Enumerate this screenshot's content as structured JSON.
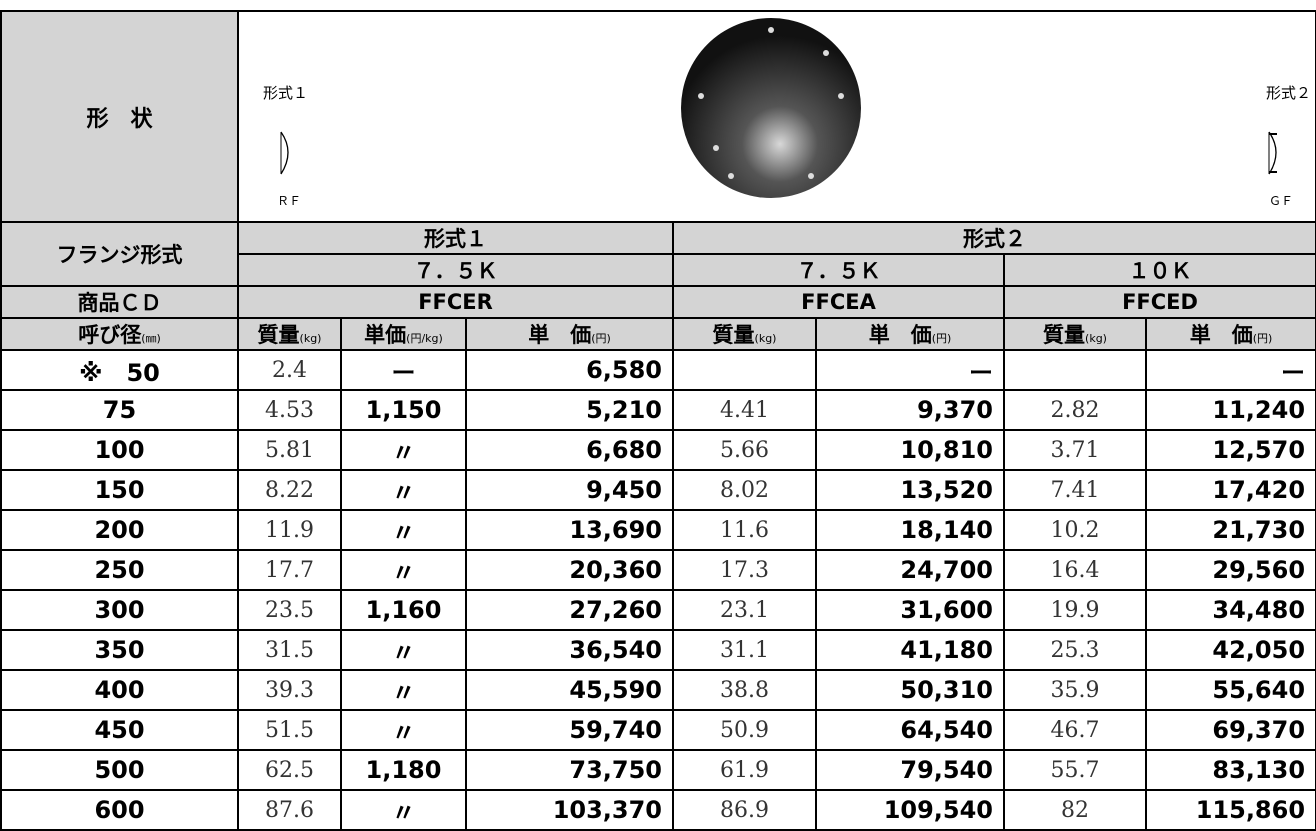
{
  "shape_row": {
    "label": "形　状",
    "left": {
      "name": "形式１",
      "code": "ＲＦ"
    },
    "right": {
      "name": "形式２",
      "code": "ＧＦ"
    }
  },
  "header": {
    "flange_label": "フランジ形式",
    "type1": "形式１",
    "type2": "形式２",
    "pressure1": "７．５Ｋ",
    "pressure2": "７．５Ｋ",
    "pressure3": "１０Ｋ",
    "product_label": "商品ＣＤ",
    "code1": "FFCER",
    "code2": "FFCEA",
    "code3": "FFCED",
    "columns": [
      {
        "label": "呼び径",
        "unit": "(㎜)"
      },
      {
        "label": "質量",
        "unit": "(kg)"
      },
      {
        "label": "単価",
        "unit": "(円/kg)"
      },
      {
        "label": "単　価",
        "unit": "(円)"
      },
      {
        "label": "質量",
        "unit": "(kg)"
      },
      {
        "label": "単　価",
        "unit": "(円)"
      },
      {
        "label": "質量",
        "unit": "(kg)"
      },
      {
        "label": "単　価",
        "unit": "(円)"
      }
    ]
  },
  "table": {
    "rows": [
      [
        "※　50",
        "2.4",
        "ー",
        "6,580",
        null,
        "ー",
        null,
        "ー"
      ],
      [
        "75",
        "4.53",
        "1,150",
        "5,210",
        "4.41",
        "9,370",
        "2.82",
        "11,240"
      ],
      [
        "100",
        "5.81",
        "〃",
        "6,680",
        "5.66",
        "10,810",
        "3.71",
        "12,570"
      ],
      [
        "150",
        "8.22",
        "〃",
        "9,450",
        "8.02",
        "13,520",
        "7.41",
        "17,420"
      ],
      [
        "200",
        "11.9",
        "〃",
        "13,690",
        "11.6",
        "18,140",
        "10.2",
        "21,730"
      ],
      [
        "250",
        "17.7",
        "〃",
        "20,360",
        "17.3",
        "24,700",
        "16.4",
        "29,560"
      ],
      [
        "300",
        "23.5",
        "1,160",
        "27,260",
        "23.1",
        "31,600",
        "19.9",
        "34,480"
      ],
      [
        "350",
        "31.5",
        "〃",
        "36,540",
        "31.1",
        "41,180",
        "25.3",
        "42,050"
      ],
      [
        "400",
        "39.3",
        "〃",
        "45,590",
        "38.8",
        "50,310",
        "35.9",
        "55,640"
      ],
      [
        "450",
        "51.5",
        "〃",
        "59,740",
        "50.9",
        "64,540",
        "46.7",
        "69,370"
      ],
      [
        "500",
        "62.5",
        "1,180",
        "73,750",
        "61.9",
        "79,540",
        "55.7",
        "83,130"
      ],
      [
        "600",
        "87.6",
        "〃",
        "103,370",
        "86.9",
        "109,540",
        "82",
        "115,860"
      ]
    ]
  }
}
